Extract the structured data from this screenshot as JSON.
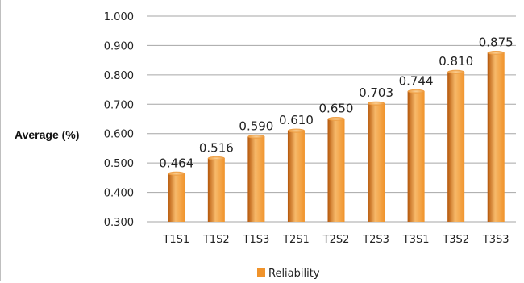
{
  "chart_data": {
    "type": "bar",
    "categories": [
      "T1S1",
      "T1S2",
      "T1S3",
      "T2S1",
      "T2S2",
      "T2S3",
      "T3S1",
      "T3S2",
      "T3S3"
    ],
    "series": [
      {
        "name": "Reliability",
        "values": [
          0.464,
          0.516,
          0.59,
          0.61,
          0.65,
          0.703,
          0.744,
          0.81,
          0.875
        ],
        "data_labels": [
          "0.464",
          "0.516",
          "0.590",
          "0.610",
          "0.650",
          "0.703",
          "0.744",
          "0.810",
          "0.875"
        ]
      }
    ],
    "ylabel": "Average (%)",
    "ylim": [
      0.3,
      1.0
    ],
    "yticks": [
      "0.300",
      "0.400",
      "0.500",
      "0.600",
      "0.700",
      "0.800",
      "0.900",
      "1.000"
    ],
    "grid": true,
    "legend_position": "bottom",
    "colors": {
      "bar_light": "#f7b96a",
      "bar_mid": "#f0932b",
      "bar_dark": "#b5570a",
      "grid": "#a6a6a6"
    }
  }
}
